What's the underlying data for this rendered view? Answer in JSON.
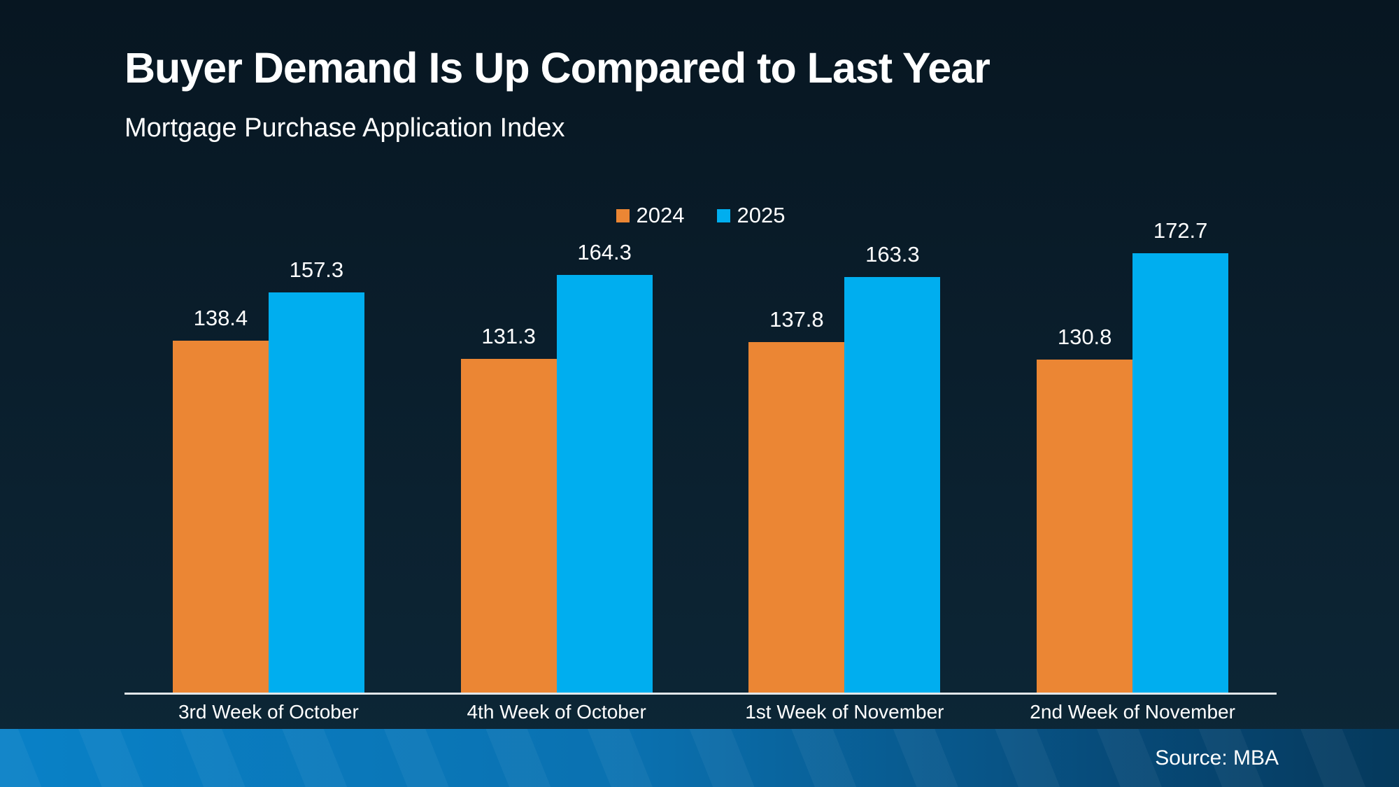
{
  "slide": {
    "title": "Buyer Demand Is Up Compared to Last Year",
    "subtitle": "Mortgage Purchase Application Index",
    "source": "Source: MBA"
  },
  "colors": {
    "background_top": "#071621",
    "background_bottom": "#0D2737",
    "series_2024": "#EB8634",
    "series_2025": "#00AEEF",
    "footer_gradient_left": "#0981C7",
    "footer_gradient_right": "#05395C",
    "axis_line": "#E2E7EA",
    "text": "#FFFFFF"
  },
  "chart_data": {
    "type": "bar",
    "title": "Buyer Demand Is Up Compared to Last Year",
    "subtitle": "Mortgage Purchase Application Index",
    "categories": [
      "3rd Week of October",
      "4th Week of October",
      "1st Week of November",
      "2nd Week of November"
    ],
    "series": [
      {
        "name": "2024",
        "color": "#EB8634",
        "values": [
          138.4,
          131.3,
          137.8,
          130.8
        ]
      },
      {
        "name": "2025",
        "color": "#00AEEF",
        "values": [
          157.3,
          164.3,
          163.3,
          172.7
        ]
      }
    ],
    "xlabel": "",
    "ylabel": "Mortgage Purchase Application Index",
    "ylim": [
      0,
      181.5
    ],
    "grid": false,
    "legend_position": "top-center",
    "data_labels": true,
    "source": "Source: MBA"
  }
}
